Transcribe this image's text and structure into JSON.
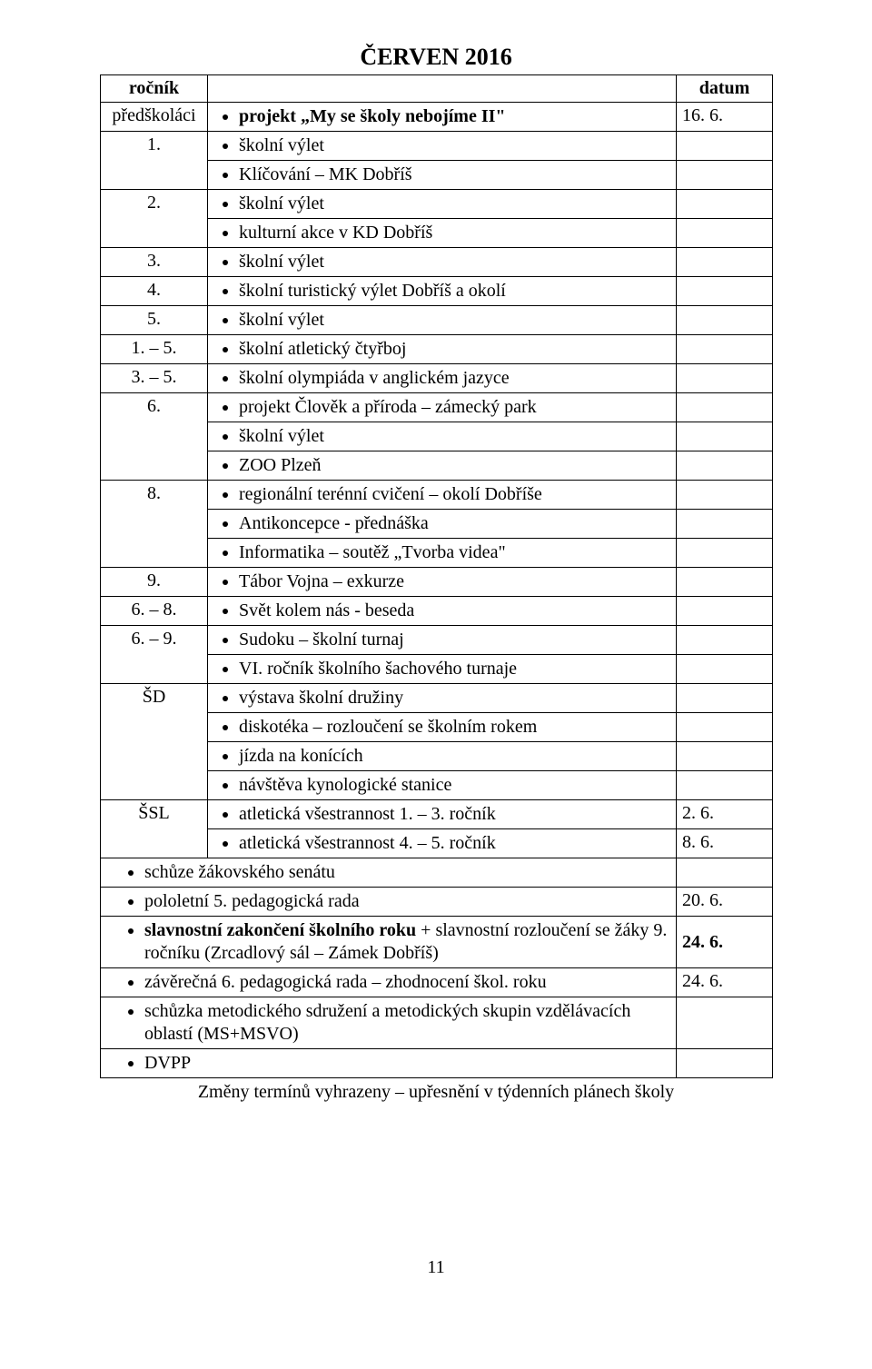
{
  "title": "ČERVEN 2016",
  "hdr": {
    "col1": "ročník",
    "col3": "datum"
  },
  "rows": {
    "r0": {
      "c1": "předškoláci",
      "li": "projekt „My se školy nebojíme II\"",
      "c3": "16. 6."
    },
    "r1": {
      "c1": "1.",
      "a": "školní výlet",
      "b": "Klíčování – MK Dobříš"
    },
    "r2": {
      "c1": "2.",
      "a": "školní výlet",
      "b": "kulturní akce v KD Dobříš"
    },
    "r3": {
      "c1": "3.",
      "a": "školní výlet"
    },
    "r4": {
      "c1": "4.",
      "a": "školní turistický výlet Dobříš a okolí"
    },
    "r5": {
      "c1": "5.",
      "a": "školní výlet"
    },
    "r6": {
      "c1": "1. – 5.",
      "a": "školní atletický čtyřboj"
    },
    "r7": {
      "c1": "3. – 5.",
      "a": "školní olympiáda v anglickém jazyce"
    },
    "r8": {
      "c1": "6.",
      "a": "projekt Člověk a příroda – zámecký park",
      "b": "školní výlet",
      "c": "ZOO Plzeň"
    },
    "r9": {
      "c1": "8.",
      "a": "regionální terénní cvičení – okolí Dobříše",
      "b": "Antikoncepce - přednáška",
      "c": "Informatika – soutěž „Tvorba videa\""
    },
    "r10": {
      "c1": "9.",
      "a": "Tábor Vojna – exkurze"
    },
    "r11": {
      "c1": "6. – 8.",
      "a": "Svět kolem nás - beseda"
    },
    "r12": {
      "c1": "6. – 9.",
      "a": "Sudoku – školní turnaj",
      "b": "VI. ročník školního šachového turnaje"
    },
    "r13": {
      "c1": "ŠD",
      "a": "výstava školní družiny",
      "b": "diskotéka – rozloučení se školním rokem",
      "c": "jízda na konících",
      "d": "návštěva kynologické stanice"
    },
    "r14": {
      "c1": "ŠSL",
      "a": "atletická všestrannost 1. – 3. ročník",
      "c3": "2. 6."
    },
    "r15": {
      "a": "atletická všestrannost 4. – 5. ročník",
      "c3": "8. 6."
    },
    "r16": {
      "a": "schůze žákovského senátu"
    },
    "r17": {
      "a": "pololetní 5. pedagogická rada",
      "c3": "20. 6."
    },
    "r18": {
      "a": "slavnostní zakončení školního roku",
      "a2": " + slavnostní rozloučení se žáky 9. ročníku (Zrcadlový sál – Zámek Dobříš)",
      "c3": "24. 6."
    },
    "r19": {
      "a": "závěrečná 6. pedagogická rada – zhodnocení škol. roku",
      "c3": "24. 6."
    },
    "r20": {
      "a": "schůzka metodického sdružení a metodických skupin vzdělávacích oblastí (MS+MSVO)"
    },
    "r21": {
      "a": "DVPP"
    }
  },
  "footnote": "Změny termínů vyhrazeny – upřesnění v týdenních plánech školy",
  "pagenum": "11"
}
